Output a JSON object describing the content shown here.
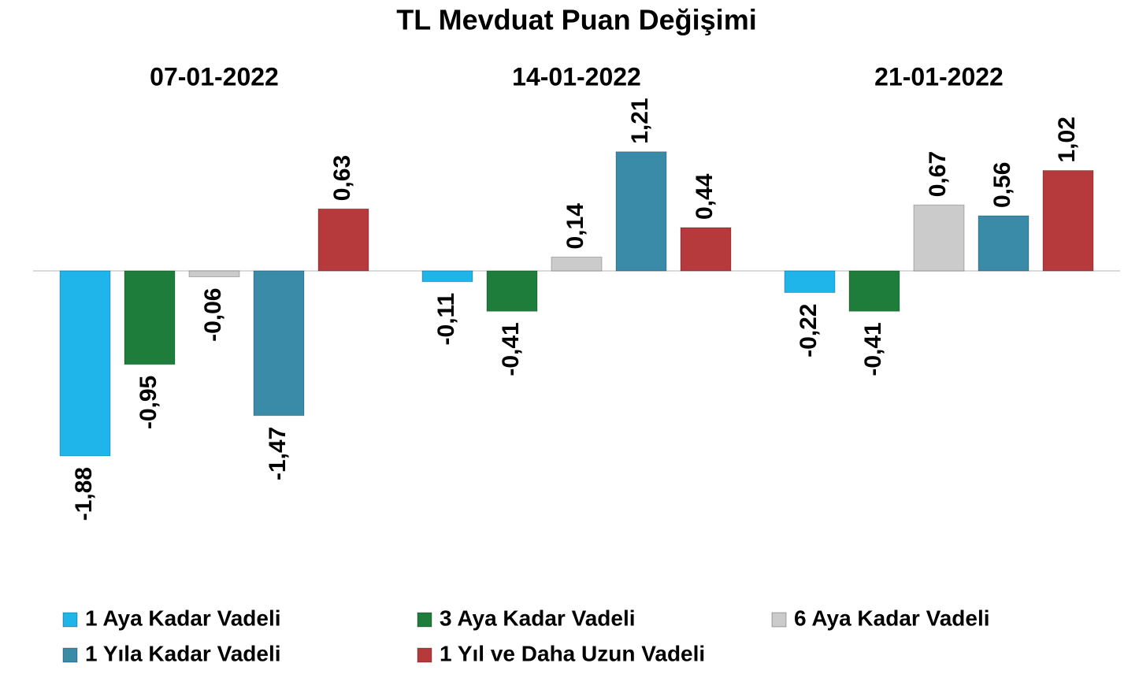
{
  "chart_data": {
    "type": "bar",
    "title": "TL Mevduat Puan Değişimi",
    "categories": [
      "07-01-2022",
      "14-01-2022",
      "21-01-2022"
    ],
    "ylim": [
      -2.5,
      1.5
    ],
    "series": [
      {
        "name": "1 Aya Kadar Vadeli",
        "color": "#1fb5ea",
        "values": [
          -1.88,
          -0.11,
          -0.22
        ],
        "value_labels": [
          "-1,88",
          "-0,11",
          "-0,22"
        ]
      },
      {
        "name": "3 Aya Kadar Vadeli",
        "color": "#1f7d3b",
        "values": [
          -0.95,
          -0.41,
          -0.41
        ],
        "value_labels": [
          "-0,95",
          "-0,41",
          "-0,41"
        ]
      },
      {
        "name": "6 Aya Kadar Vadeli",
        "color": "#cbcbcb",
        "values": [
          -0.06,
          0.14,
          0.67
        ],
        "value_labels": [
          "-0,06",
          "0,14",
          "0,67"
        ]
      },
      {
        "name": "1 Yıla Kadar Vadeli",
        "color": "#3a8ba8",
        "values": [
          -1.47,
          1.21,
          0.56
        ],
        "value_labels": [
          "-1,47",
          "1,21",
          "0,56"
        ]
      },
      {
        "name": "1 Yıl ve Daha Uzun Vadeli",
        "color": "#b63a3b",
        "values": [
          0.63,
          0.44,
          1.02
        ],
        "value_labels": [
          "0,63",
          "0,44",
          "1,02"
        ]
      }
    ]
  }
}
